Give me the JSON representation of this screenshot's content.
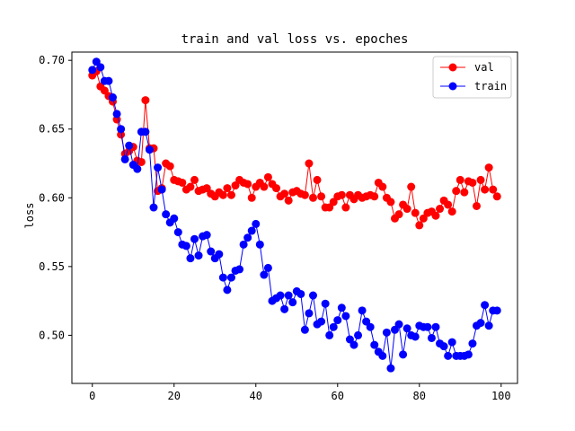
{
  "chart_data": {
    "type": "line",
    "title": "train and val loss vs. epoches",
    "xlabel": "",
    "ylabel": "loss",
    "xlim": [
      -5,
      104
    ],
    "ylim": [
      0.465,
      0.706
    ],
    "xticks": [
      0,
      20,
      40,
      60,
      80,
      100
    ],
    "yticks": [
      0.5,
      0.55,
      0.6,
      0.65,
      0.7
    ],
    "ytick_format": 2,
    "grid": false,
    "legend_position": "top-right",
    "series": [
      {
        "name": "val",
        "color": "#ff0000",
        "marker": "circle",
        "values": [
          0.689,
          0.692,
          0.681,
          0.678,
          0.674,
          0.67,
          0.657,
          0.646,
          0.632,
          0.634,
          0.637,
          0.627,
          0.626,
          0.671,
          0.636,
          0.636,
          0.605,
          0.607,
          0.625,
          0.623,
          0.613,
          0.612,
          0.611,
          0.606,
          0.608,
          0.613,
          0.605,
          0.606,
          0.607,
          0.603,
          0.601,
          0.604,
          0.602,
          0.607,
          0.602,
          0.609,
          0.613,
          0.611,
          0.61,
          0.6,
          0.608,
          0.611,
          0.608,
          0.615,
          0.61,
          0.607,
          0.601,
          0.603,
          0.598,
          0.604,
          0.605,
          0.603,
          0.602,
          0.625,
          0.6,
          0.613,
          0.601,
          0.593,
          0.593,
          0.597,
          0.601,
          0.602,
          0.593,
          0.602,
          0.599,
          0.602,
          0.6,
          0.601,
          0.602,
          0.601,
          0.611,
          0.608,
          0.6,
          0.597,
          0.585,
          0.588,
          0.595,
          0.592,
          0.608,
          0.589,
          0.58,
          0.585,
          0.589,
          0.59,
          0.587,
          0.592,
          0.598,
          0.595,
          0.59,
          0.605,
          0.613,
          0.604,
          0.612,
          0.611,
          0.594,
          0.613,
          0.606,
          0.622,
          0.606,
          0.601
        ]
      },
      {
        "name": "train",
        "color": "#0000ff",
        "marker": "circle",
        "values": [
          0.693,
          0.699,
          0.695,
          0.685,
          0.685,
          0.673,
          0.661,
          0.65,
          0.628,
          0.638,
          0.624,
          0.621,
          0.648,
          0.648,
          0.635,
          0.593,
          0.622,
          0.606,
          0.588,
          0.582,
          0.585,
          0.575,
          0.566,
          0.565,
          0.556,
          0.57,
          0.558,
          0.572,
          0.573,
          0.561,
          0.556,
          0.559,
          0.542,
          0.533,
          0.542,
          0.547,
          0.548,
          0.566,
          0.571,
          0.576,
          0.581,
          0.566,
          0.544,
          0.549,
          0.525,
          0.527,
          0.529,
          0.519,
          0.529,
          0.524,
          0.532,
          0.53,
          0.504,
          0.516,
          0.529,
          0.508,
          0.51,
          0.523,
          0.5,
          0.506,
          0.511,
          0.52,
          0.514,
          0.497,
          0.493,
          0.5,
          0.518,
          0.51,
          0.506,
          0.493,
          0.488,
          0.485,
          0.502,
          0.476,
          0.504,
          0.508,
          0.486,
          0.505,
          0.5,
          0.499,
          0.507,
          0.506,
          0.506,
          0.498,
          0.506,
          0.494,
          0.492,
          0.485,
          0.495,
          0.485,
          0.485,
          0.485,
          0.486,
          0.494,
          0.507,
          0.509,
          0.522,
          0.507,
          0.518,
          0.518
        ]
      }
    ]
  }
}
